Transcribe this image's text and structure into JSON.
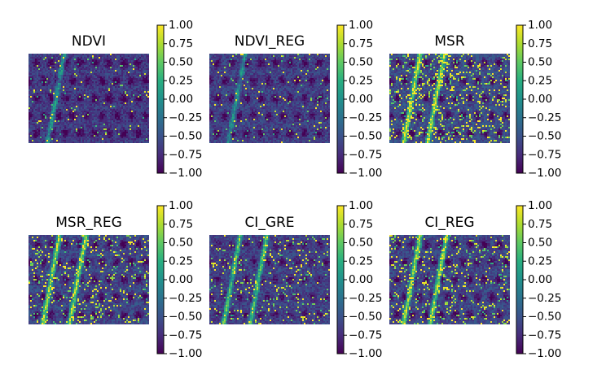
{
  "chart_data": [
    {
      "type": "heatmap",
      "title": "NDVI",
      "colormap": "viridis",
      "colorbar": {
        "range": [
          -1.0,
          1.0
        ],
        "ticks": [
          "1.00",
          "0.75",
          "0.50",
          "0.25",
          "0.00",
          "−0.25",
          "−0.50",
          "−0.75",
          "−1.00"
        ]
      },
      "axes_visible": false
    },
    {
      "type": "heatmap",
      "title": "NDVI_REG",
      "colormap": "viridis",
      "colorbar": {
        "range": [
          -1.0,
          1.0
        ],
        "ticks": [
          "1.00",
          "0.75",
          "0.50",
          "0.25",
          "0.00",
          "−0.25",
          "−0.50",
          "−0.75",
          "−1.00"
        ]
      },
      "axes_visible": false
    },
    {
      "type": "heatmap",
      "title": "MSR",
      "colormap": "viridis",
      "colorbar": {
        "range": [
          -1.0,
          1.0
        ],
        "ticks": [
          "1.00",
          "0.75",
          "0.50",
          "0.25",
          "0.00",
          "−0.25",
          "−0.50",
          "−0.75",
          "−1.00"
        ]
      },
      "axes_visible": false
    },
    {
      "type": "heatmap",
      "title": "MSR_REG",
      "colormap": "viridis",
      "colorbar": {
        "range": [
          -1.0,
          1.0
        ],
        "ticks": [
          "1.00",
          "0.75",
          "0.50",
          "0.25",
          "0.00",
          "−0.25",
          "−0.50",
          "−0.75",
          "−1.00"
        ]
      },
      "axes_visible": false
    },
    {
      "type": "heatmap",
      "title": "CI_GRE",
      "colormap": "viridis",
      "colorbar": {
        "range": [
          -1.0,
          1.0
        ],
        "ticks": [
          "1.00",
          "0.75",
          "0.50",
          "0.25",
          "0.00",
          "−0.25",
          "−0.50",
          "−0.75",
          "−1.00"
        ]
      },
      "axes_visible": false
    },
    {
      "type": "heatmap",
      "title": "CI_REG",
      "colormap": "viridis",
      "colorbar": {
        "range": [
          -1.0,
          1.0
        ],
        "ticks": [
          "1.00",
          "0.75",
          "0.50",
          "0.25",
          "0.00",
          "−0.25",
          "−0.50",
          "−0.75",
          "−1.00"
        ]
      },
      "axes_visible": false
    }
  ]
}
